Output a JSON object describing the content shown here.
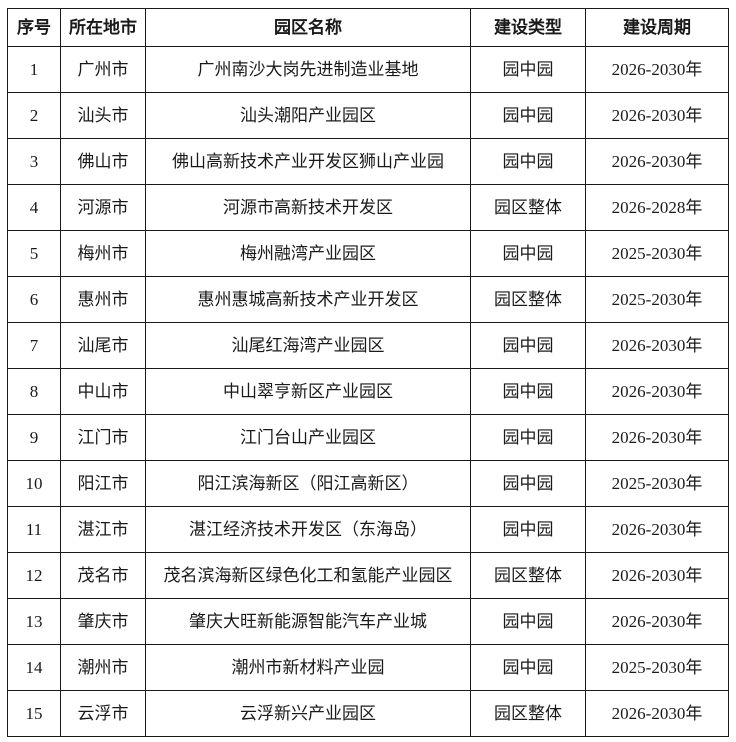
{
  "table": {
    "headers": [
      "序号",
      "所在地市",
      "园区名称",
      "建设类型",
      "建设周期"
    ],
    "rows": [
      [
        "1",
        "广州市",
        "广州南沙大岗先进制造业基地",
        "园中园",
        "2026-2030年"
      ],
      [
        "2",
        "汕头市",
        "汕头潮阳产业园区",
        "园中园",
        "2026-2030年"
      ],
      [
        "3",
        "佛山市",
        "佛山高新技术产业开发区狮山产业园",
        "园中园",
        "2026-2030年"
      ],
      [
        "4",
        "河源市",
        "河源市高新技术开发区",
        "园区整体",
        "2026-2028年"
      ],
      [
        "5",
        "梅州市",
        "梅州融湾产业园区",
        "园中园",
        "2025-2030年"
      ],
      [
        "6",
        "惠州市",
        "惠州惠城高新技术产业开发区",
        "园区整体",
        "2025-2030年"
      ],
      [
        "7",
        "汕尾市",
        "汕尾红海湾产业园区",
        "园中园",
        "2026-2030年"
      ],
      [
        "8",
        "中山市",
        "中山翠亨新区产业园区",
        "园中园",
        "2026-2030年"
      ],
      [
        "9",
        "江门市",
        "江门台山产业园区",
        "园中园",
        "2026-2030年"
      ],
      [
        "10",
        "阳江市",
        "阳江滨海新区（阳江高新区）",
        "园中园",
        "2025-2030年"
      ],
      [
        "11",
        "湛江市",
        "湛江经济技术开发区（东海岛）",
        "园中园",
        "2026-2030年"
      ],
      [
        "12",
        "茂名市",
        "茂名滨海新区绿色化工和氢能产业园区",
        "园区整体",
        "2026-2030年"
      ],
      [
        "13",
        "肇庆市",
        "肇庆大旺新能源智能汽车产业城",
        "园中园",
        "2026-2030年"
      ],
      [
        "14",
        "潮州市",
        "潮州市新材料产业园",
        "园中园",
        "2025-2030年"
      ],
      [
        "15",
        "云浮市",
        "云浮新兴产业园区",
        "园区整体",
        "2026-2030年"
      ]
    ],
    "border_color": "#1a1a1a",
    "text_color": "#1a1a1a",
    "background_color": "#ffffff"
  }
}
